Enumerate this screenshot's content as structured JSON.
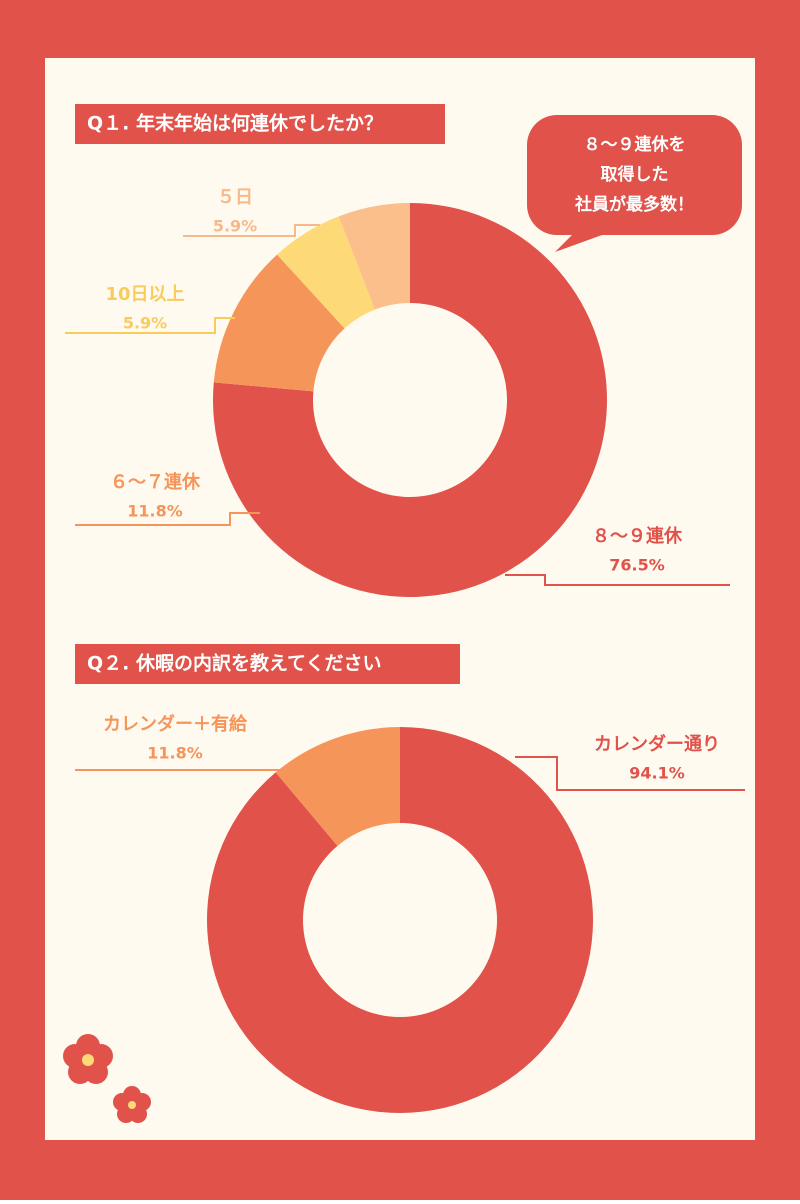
{
  "chart_data": [
    {
      "type": "pie",
      "donut": true,
      "title": "Q１. 年末年始は何連休でしたか？",
      "categories": [
        "８～９連休",
        "６～７連休",
        "10日以上",
        "５日"
      ],
      "values": [
        76.5,
        11.8,
        5.9,
        5.9
      ],
      "value_labels": [
        "76.5%",
        "11.8%",
        "5.9%",
        "5.9%"
      ],
      "colors": [
        "#e0524a",
        "#f5955a",
        "#fdd977",
        "#fbbf8b"
      ],
      "annotations": [
        "８～９連休を",
        "取得した",
        "社員が最多数！"
      ]
    },
    {
      "type": "pie",
      "donut": true,
      "title": "Q２. 休暇の内訳を教えてください",
      "categories": [
        "カレンダー通り",
        "カレンダー＋有給"
      ],
      "values": [
        94.1,
        11.8
      ],
      "value_labels": [
        "94.1%",
        "11.8%"
      ],
      "colors": [
        "#e0524a",
        "#f5955a"
      ]
    }
  ]
}
